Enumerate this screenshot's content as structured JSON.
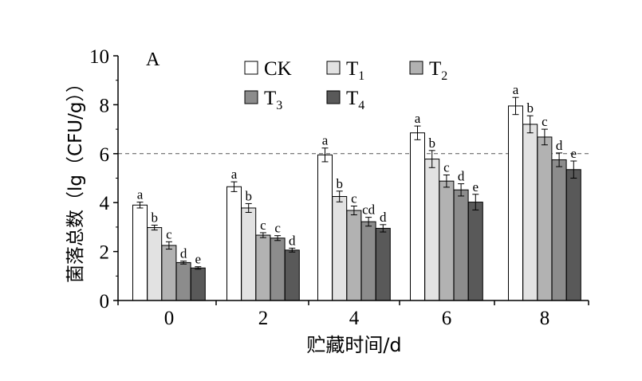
{
  "chart_data": {
    "type": "bar",
    "panel_label": "A",
    "xlabel": "贮藏时间/d",
    "ylabel": "菌落总数（lg（CFU/g））",
    "ylim": [
      0,
      10
    ],
    "yticks": [
      "0",
      "2",
      "4",
      "6",
      "8",
      "10"
    ],
    "categories": [
      "0",
      "2",
      "4",
      "6",
      "8"
    ],
    "reference_line": 6,
    "legend_placement": "top",
    "series": [
      {
        "name": "CK",
        "sub": "",
        "color": "#ffffff",
        "values": [
          3.9,
          4.65,
          5.95,
          6.85,
          7.95
        ],
        "errors": [
          0.12,
          0.2,
          0.28,
          0.28,
          0.35
        ],
        "letters": [
          "a",
          "a",
          "a",
          "a",
          "a"
        ]
      },
      {
        "name": "T",
        "sub": "1",
        "color": "#e2e2e2",
        "values": [
          2.98,
          3.78,
          4.25,
          5.78,
          7.2
        ],
        "errors": [
          0.1,
          0.18,
          0.22,
          0.35,
          0.35
        ],
        "letters": [
          "b",
          "b",
          "b",
          "b",
          "b"
        ]
      },
      {
        "name": "T",
        "sub": "2",
        "color": "#b2b2b2",
        "values": [
          2.25,
          2.67,
          3.68,
          4.88,
          6.68
        ],
        "errors": [
          0.15,
          0.1,
          0.18,
          0.25,
          0.32
        ],
        "letters": [
          "c",
          "c",
          "c",
          "c",
          "c"
        ]
      },
      {
        "name": "T",
        "sub": "3",
        "color": "#8c8c8c",
        "values": [
          1.55,
          2.55,
          3.22,
          4.52,
          5.75
        ],
        "errors": [
          0.06,
          0.1,
          0.18,
          0.25,
          0.28
        ],
        "letters": [
          "d",
          "c",
          "cd",
          "d",
          "d"
        ]
      },
      {
        "name": "T",
        "sub": "4",
        "color": "#595959",
        "values": [
          1.33,
          2.06,
          2.95,
          4.02,
          5.35
        ],
        "errors": [
          0.05,
          0.08,
          0.15,
          0.32,
          0.35
        ],
        "letters": [
          "e",
          "d",
          "d",
          "e",
          "e"
        ]
      }
    ]
  }
}
